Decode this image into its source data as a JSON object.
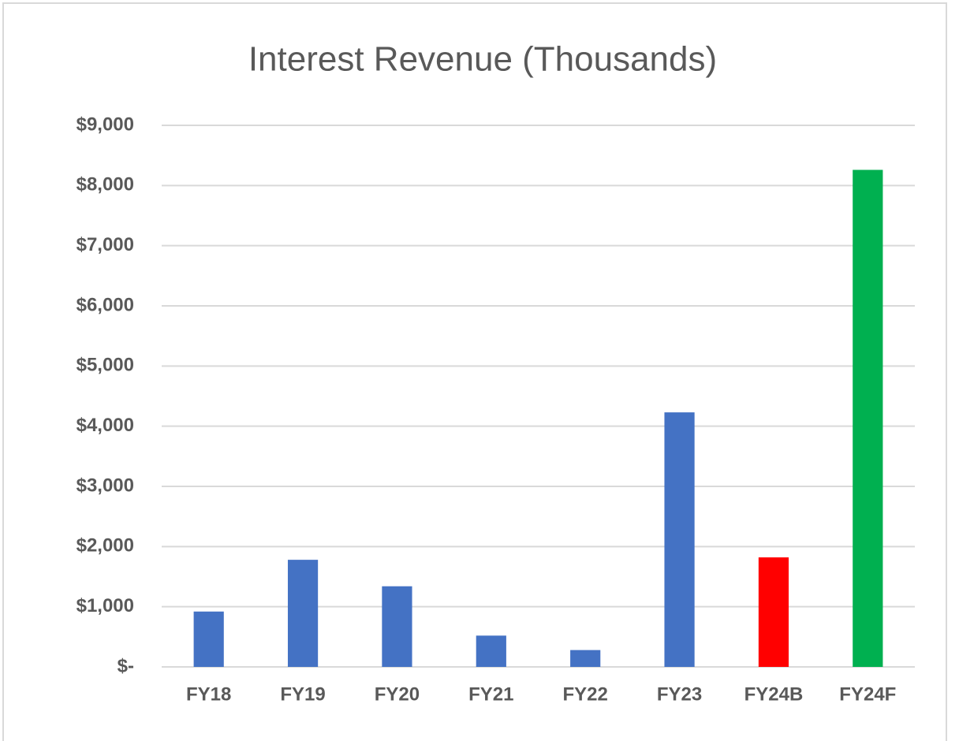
{
  "chart_data": {
    "type": "bar",
    "title": "Interest Revenue (Thousands)",
    "categories": [
      "FY18",
      "FY19",
      "FY20",
      "FY21",
      "FY22",
      "FY23",
      "FY24B",
      "FY24F"
    ],
    "values": [
      920,
      1780,
      1340,
      520,
      280,
      4230,
      1820,
      8260
    ],
    "colors": [
      "#4472c4",
      "#4472c4",
      "#4472c4",
      "#4472c4",
      "#4472c4",
      "#4472c4",
      "#ff0000",
      "#00b050"
    ],
    "ylim": [
      0,
      9000
    ],
    "yticks": [
      {
        "value": 0,
        "label": "$-"
      },
      {
        "value": 1000,
        "label": "$1,000"
      },
      {
        "value": 2000,
        "label": "$2,000"
      },
      {
        "value": 3000,
        "label": "$3,000"
      },
      {
        "value": 4000,
        "label": "$4,000"
      },
      {
        "value": 5000,
        "label": "$5,000"
      },
      {
        "value": 6000,
        "label": "$6,000"
      },
      {
        "value": 7000,
        "label": "$7,000"
      },
      {
        "value": 8000,
        "label": "$8,000"
      },
      {
        "value": 9000,
        "label": "$9,000"
      }
    ],
    "grid": true
  }
}
